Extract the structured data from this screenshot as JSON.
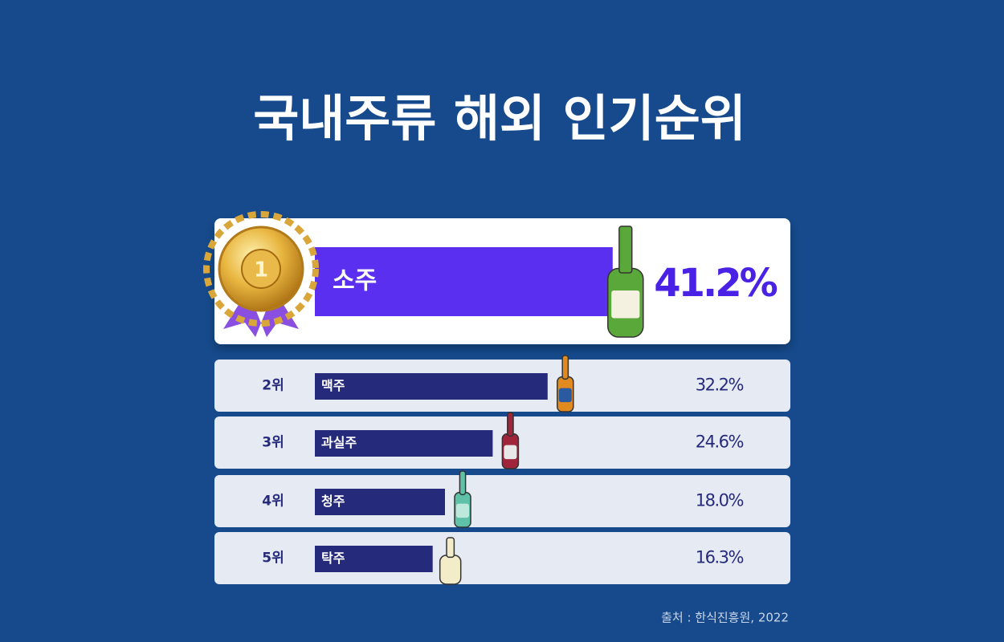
{
  "chart_data": {
    "type": "bar",
    "orientation": "horizontal",
    "title": "국내주류 해외 인기순위",
    "ranks": [
      "1",
      "2위",
      "3위",
      "4위",
      "5위"
    ],
    "categories": [
      "소주",
      "맥주",
      "과실주",
      "청주",
      "탁주"
    ],
    "values": [
      41.2,
      32.2,
      24.6,
      18.0,
      16.3
    ],
    "value_labels": [
      "41.2%",
      "32.2%",
      "24.6%",
      "18.0%",
      "16.3%"
    ],
    "colors": [
      "#5a2ff0",
      "#262a7b",
      "#262a7b",
      "#262a7b",
      "#262a7b"
    ],
    "source": "출처 : 한식진흥원, 2022"
  }
}
